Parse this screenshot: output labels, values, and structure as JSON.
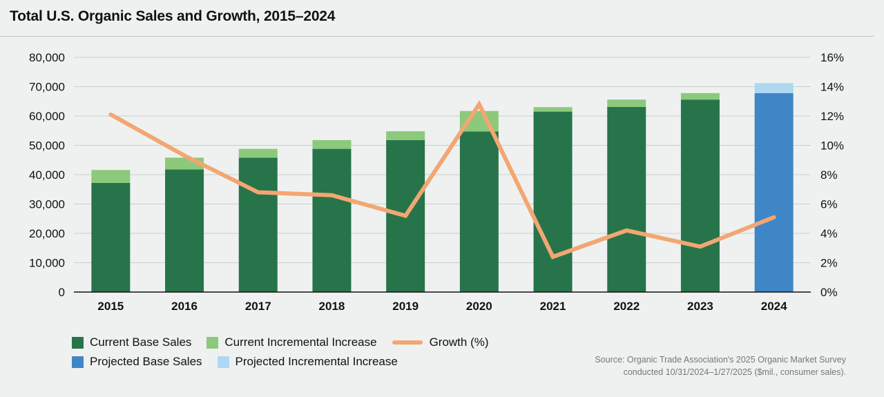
{
  "title": "Total U.S. Organic Sales and Growth, 2015–2024",
  "source": {
    "line1": "Source: Organic Trade Association's 2025 Organic Market Survey",
    "line2": "conducted 10/31/2024–1/27/2025 ($mil., consumer sales)."
  },
  "legend": {
    "current_base": "Current Base Sales",
    "current_incremental": "Current Incremental Increase",
    "growth": "Growth (%)",
    "projected_base": "Projected Base Sales",
    "projected_incremental": "Projected Incremental Increase"
  },
  "colors": {
    "current_base": "#27744a",
    "current_incremental": "#8cc97c",
    "projected_base": "#3f86c6",
    "projected_incremental": "#aed8f2",
    "growth": "#f3a672",
    "grid": "#c9cfcc",
    "axis": "#111111"
  },
  "chart_data": {
    "type": "bar",
    "stacked": true,
    "categories": [
      "2015",
      "2016",
      "2017",
      "2018",
      "2019",
      "2020",
      "2021",
      "2022",
      "2023",
      "2024"
    ],
    "series": [
      {
        "name": "Current Base Sales",
        "values": [
          37200,
          41800,
          45800,
          48800,
          51800,
          54700,
          61500,
          63100,
          65600,
          null
        ]
      },
      {
        "name": "Current Incremental Increase",
        "values": [
          4400,
          4000,
          3000,
          3000,
          3000,
          7000,
          1500,
          2500,
          2200,
          null
        ]
      },
      {
        "name": "Projected Base Sales",
        "values": [
          null,
          null,
          null,
          null,
          null,
          null,
          null,
          null,
          null,
          67800
        ]
      },
      {
        "name": "Projected Incremental Increase",
        "values": [
          null,
          null,
          null,
          null,
          null,
          null,
          null,
          null,
          null,
          3400
        ]
      },
      {
        "name": "Growth (%)",
        "type": "line",
        "axis": "right",
        "values": [
          12.1,
          9.3,
          6.8,
          6.6,
          5.2,
          12.8,
          2.4,
          4.2,
          3.1,
          5.1
        ]
      }
    ],
    "ylim": [
      0,
      80000
    ],
    "yticks": [
      "0",
      "10,000",
      "20,000",
      "30,000",
      "40,000",
      "50,000",
      "60,000",
      "70,000",
      "80,000"
    ],
    "y2lim": [
      0,
      16
    ],
    "y2ticks": [
      "0%",
      "2%",
      "4%",
      "6%",
      "8%",
      "10%",
      "12%",
      "14%",
      "16%"
    ],
    "xlabel": "",
    "ylabel": "",
    "grid": true,
    "legend_position": "bottom-left"
  }
}
